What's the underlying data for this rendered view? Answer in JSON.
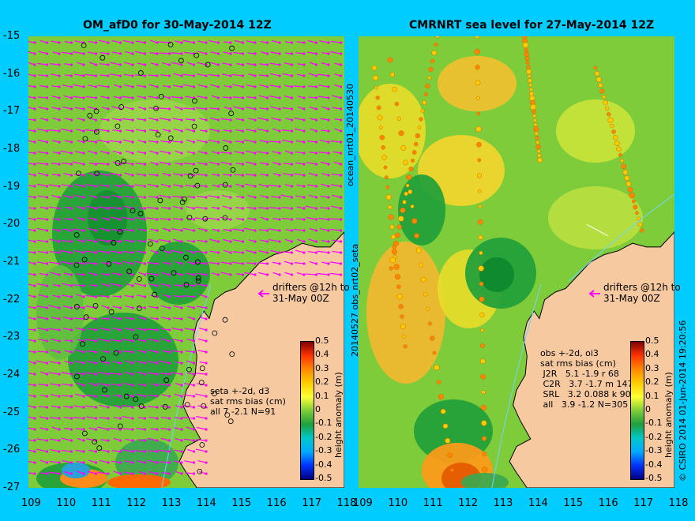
{
  "colors": {
    "background": "#00ccff",
    "land": "#f7c9a0",
    "ocean_base": "#7fcc3a",
    "positive": "#ffd23a",
    "negative": "#1fa03a",
    "drifter": "#ff00ff",
    "coast_gray": "#9b9b9b"
  },
  "left_panel": {
    "title": "OM_afD0 for 30-May-2014 12Z",
    "vertical_label": "20140527 obs_nrt02_seta",
    "stats": "seta +-2d, d3\nsat rms bias (cm)\nall 7 -2.1 N=91",
    "drifters_label": "drifters @12h to\n31-May 00Z",
    "colorbar_label": "height anomaly (m)"
  },
  "right_panel": {
    "title": "CMRNRT sea level  for 27-May-2014 12Z",
    "vertical_label": "ocean_nrt01_20140530",
    "stats": "obs +-2d, oi3\nsat rms bias (cm)\n J2R   5.1 -1.9 r 68\n C2R   3.7 -1.7 m 147\n SRL   3.2 0.088 k 90\n all   3.9 -1.2 N=305",
    "drifters_label": "drifters @12h to\n31-May 00Z",
    "colorbar_label": "height anomaly (m)",
    "credit": "© CSIRO 2014   01-Jun-2014 19:20:56"
  },
  "axes": {
    "x_ticks": [
      "109",
      "110",
      "111",
      "112",
      "113",
      "114",
      "115",
      "116",
      "117",
      "118"
    ],
    "y_ticks": [
      "-15",
      "-16",
      "-17",
      "-18",
      "-19",
      "-20",
      "-21",
      "-22",
      "-23",
      "-24",
      "-25",
      "-26",
      "-27"
    ]
  },
  "colorbar": {
    "ticks": [
      "0.5",
      "0.4",
      "0.3",
      "0.2",
      "0.1",
      "0",
      "-0.1",
      "-0.2",
      "-0.3",
      "-0.4",
      "-0.5"
    ],
    "stops": [
      "#00007f",
      "#0033ff",
      "#00aaff",
      "#00c8c8",
      "#1fa03a",
      "#7fcc3a",
      "#ffff33",
      "#ffcc00",
      "#ff8800",
      "#ff3300",
      "#7f0000"
    ]
  },
  "chart_data": {
    "type": "map",
    "xlim": [
      109,
      118
    ],
    "ylim": [
      -27,
      -15
    ],
    "xlabel": "",
    "ylabel": "",
    "colorbar_range": [
      -0.5,
      0.5
    ],
    "colorbar_units": "height anomaly (m)"
  }
}
